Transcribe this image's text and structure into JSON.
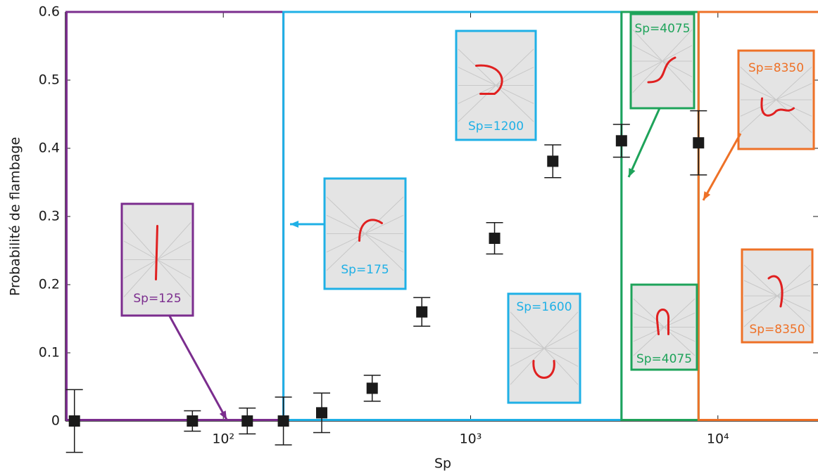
{
  "chart_data": {
    "type": "scatter",
    "xlabel": "Sp",
    "ylabel": "Probabilité de flambage",
    "x": [
      25,
      75,
      125,
      175,
      250,
      400,
      635,
      1250,
      2150,
      4075,
      8350
    ],
    "values": [
      0,
      0,
      0,
      0,
      0.012,
      0.048,
      0.16,
      0.268,
      0.381,
      0.411,
      0.408
    ],
    "errors": [
      0.046,
      0.015,
      0.019,
      0.035,
      0.029,
      0.019,
      0.021,
      0.023,
      0.024,
      0.024,
      0.047
    ],
    "color": "#1a1a1a",
    "log_x": true,
    "xlim": [
      23,
      25400
    ],
    "ylim": [
      0,
      0.6
    ],
    "xticks": [
      {
        "value": 100,
        "label": "10²"
      },
      {
        "value": 1000,
        "label": "10³"
      },
      {
        "value": 10000,
        "label": "10⁴"
      }
    ],
    "yticks": [
      0,
      0.1,
      0.2,
      0.3,
      0.4,
      0.5,
      0.6
    ],
    "regions": [
      {
        "end": 175,
        "color": "#7b2d8e"
      },
      {
        "end": 4075,
        "color": "#1fb0e6"
      },
      {
        "end": 8350,
        "color": "#1ea35a"
      },
      {
        "color": "#ee7127"
      }
    ],
    "insets": [
      {
        "label": "Sp=125",
        "color": "#7b2d8e"
      },
      {
        "label": "Sp=175",
        "color": "#1fb0e6"
      },
      {
        "label": "Sp=1200",
        "color": "#1fb0e6"
      },
      {
        "label": "Sp=1600",
        "color": "#1fb0e6"
      },
      {
        "label": "Sp=4075",
        "color": "#1ea35a"
      },
      {
        "label": "Sp=4075",
        "color": "#1ea35a"
      },
      {
        "label": "Sp=8350",
        "color": "#ee7127"
      },
      {
        "label": "Sp=8350",
        "color": "#ee7127"
      }
    ]
  }
}
